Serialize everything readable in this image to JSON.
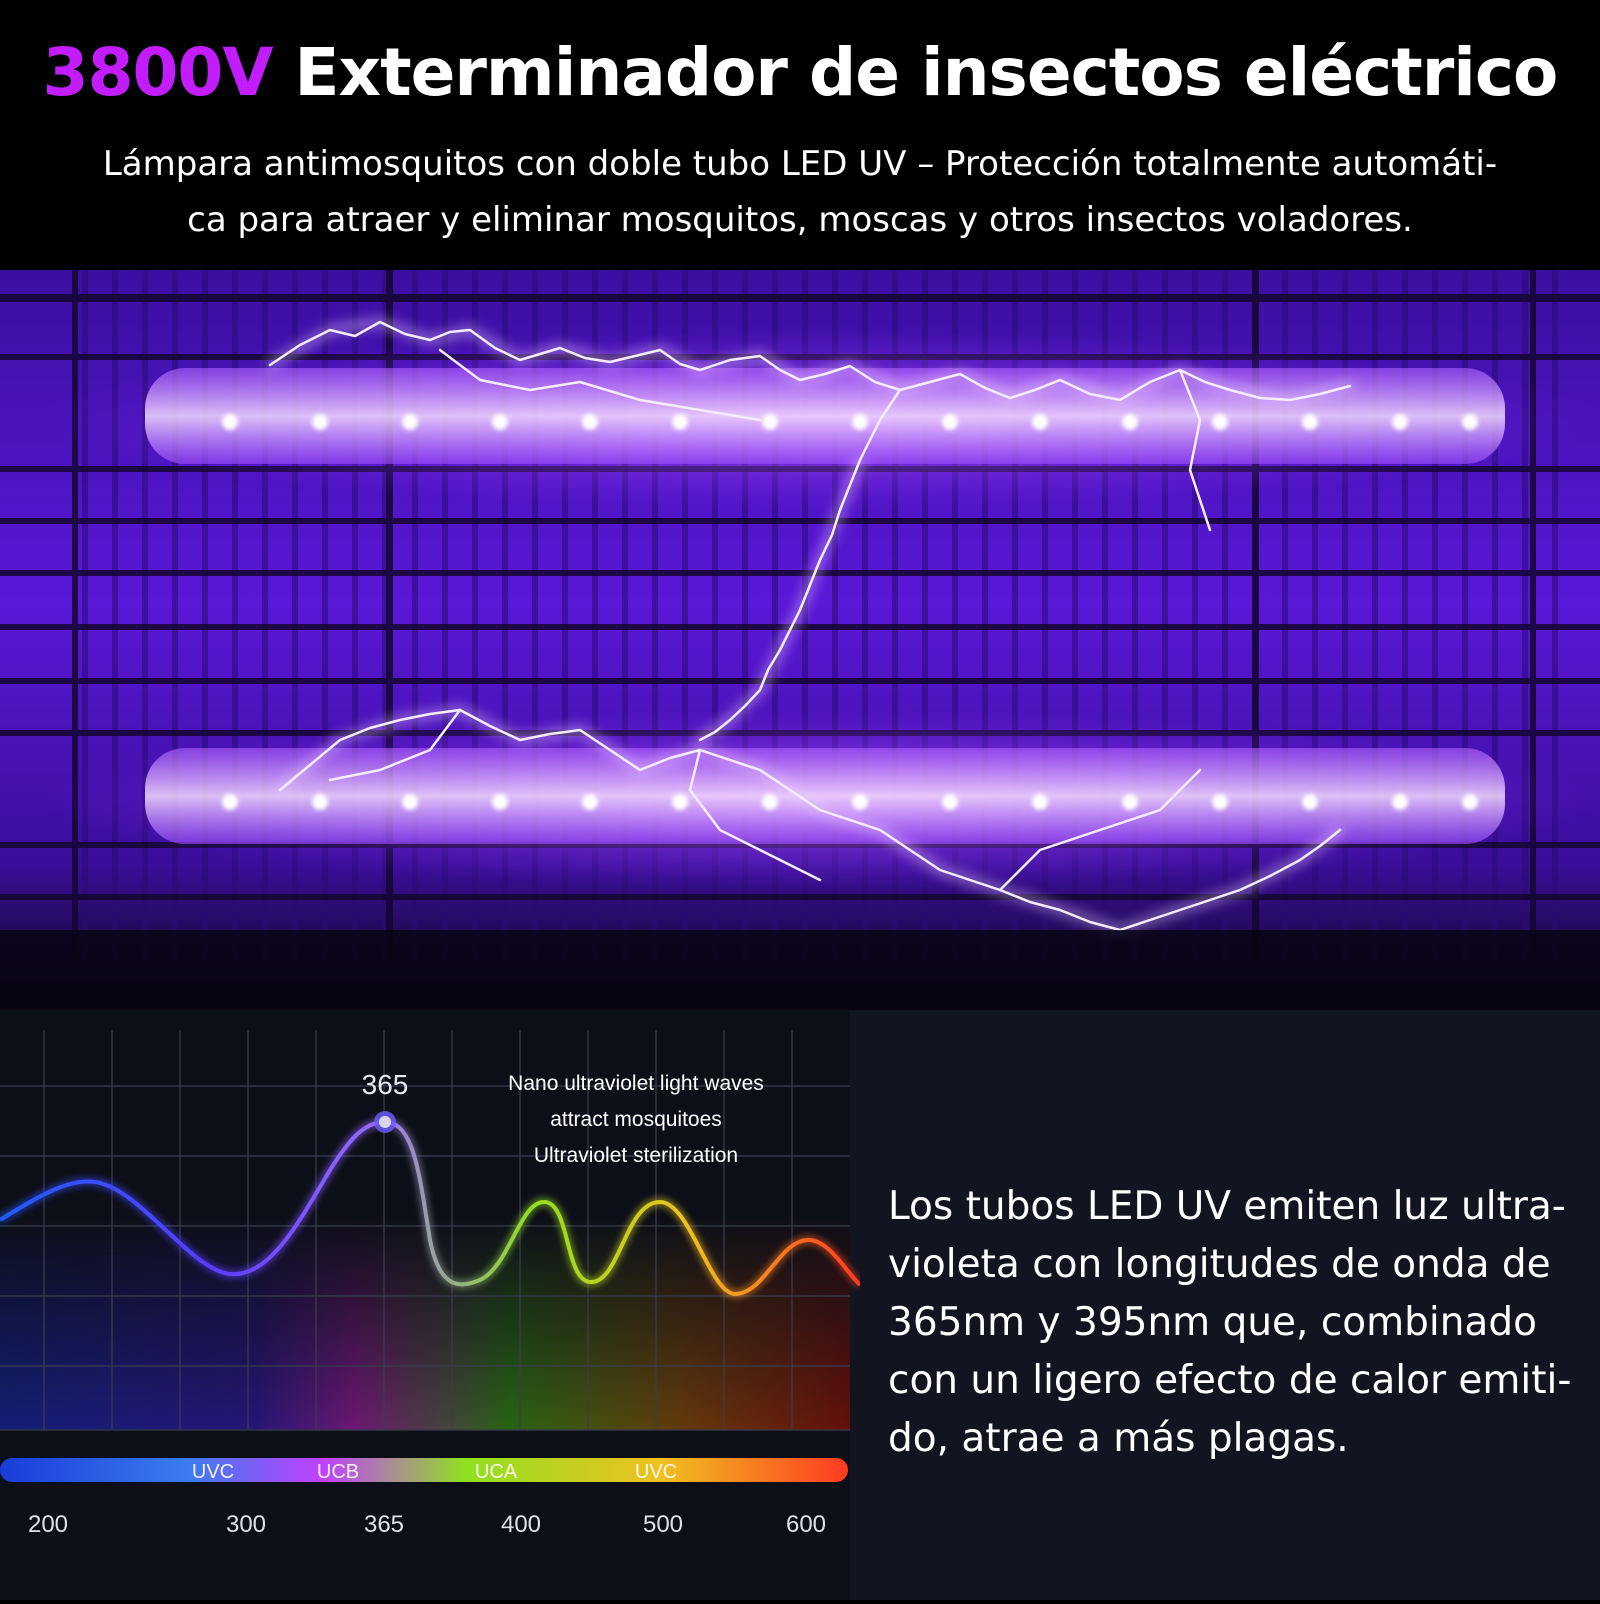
{
  "header": {
    "title_accent": "3800V",
    "title_rest": "Exterminador de insectos eléctrico",
    "subtitle_line1": "Lámpara antimosquitos con doble tubo LED UV – Protección totalmente automáti-",
    "subtitle_line2": "ca para atraer y eliminar mosquitos, moscas y otros insectos voladores."
  },
  "colors": {
    "accent": "#c21cff",
    "uv_glow": "#8a2cff",
    "grid_dark": "#1a0a3a",
    "panel_bg": "#121420"
  },
  "photo": {
    "subject": "uv-tubes-with-electric-arcs"
  },
  "chart": {
    "peak_label": "365",
    "annotation": [
      "Nano ultraviolet light waves",
      "attract mosquitoes",
      "Ultraviolet sterilization"
    ],
    "bands": [
      "UVC",
      "UCB",
      "UCA",
      "UVC"
    ],
    "ticks": [
      "200",
      "300",
      "365",
      "400",
      "500",
      "600"
    ]
  },
  "description": {
    "text": "Los tubos LED UV emiten luz ultra-\nvioleta con longitudes de onda de\n365nm y 395nm que, combinado\ncon un ligero efecto de calor emiti-\ndo, atrae a más plagas."
  }
}
